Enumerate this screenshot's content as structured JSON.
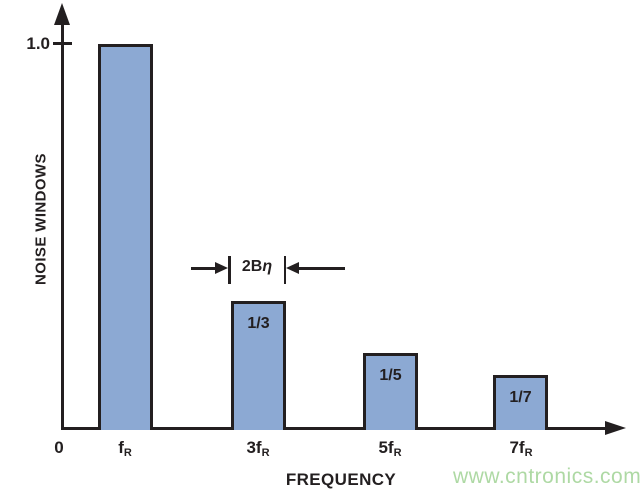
{
  "chart_data": {
    "type": "bar",
    "title": "",
    "ylabel": "NOISE WINDOWS",
    "xlabel": "FREQUENCY",
    "origin_label": "0",
    "y_ticks": [
      {
        "value": 1.0,
        "label": "1.0"
      }
    ],
    "categories": [
      "fR",
      "3fR",
      "5fR",
      "7fR"
    ],
    "x_ticks": [
      {
        "base": "f",
        "sub": "R"
      },
      {
        "base": "3f",
        "sub": "R"
      },
      {
        "base": "5f",
        "sub": "R"
      },
      {
        "base": "7f",
        "sub": "R"
      }
    ],
    "values": [
      1.0,
      0.3333,
      0.2,
      0.1429
    ],
    "bar_labels": [
      "",
      "1/3",
      "1/5",
      "1/7"
    ],
    "annotation": {
      "prefix": "2B",
      "symbol": "η"
    },
    "ylim": [
      0,
      1.1
    ],
    "grid": false,
    "legend": "none",
    "colors": {
      "bar_fill": "#8ca9d3",
      "bar_border": "#231f20",
      "axis": "#231f20",
      "text": "#231f20"
    }
  },
  "watermark": {
    "text": "www.cntronics.com",
    "color": "#aed9a4"
  }
}
